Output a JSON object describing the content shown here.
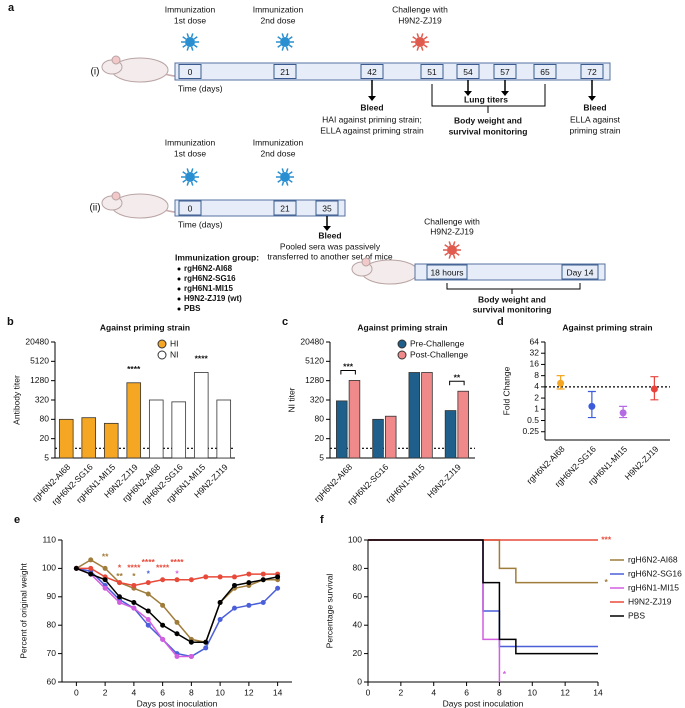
{
  "schematic": {
    "label": "a",
    "row_i": "(i)",
    "row_ii": "(ii)",
    "dose1": [
      "Immunization",
      "1st dose"
    ],
    "dose2": [
      "Immunization",
      "2nd dose"
    ],
    "challenge": [
      "Challenge with",
      "H9N2-ZJ19"
    ],
    "days_i": [
      "0",
      "21",
      "42",
      "51",
      "54",
      "57",
      "65",
      "72"
    ],
    "time_label": "Time (days)",
    "bleed": "Bleed",
    "bleed1_note": [
      "HAI against priming strain;",
      "ELLA against priming strain"
    ],
    "lung": "Lung titers",
    "monitor": [
      "Body weight and",
      "survival monitoring"
    ],
    "bleed2_note": [
      "ELLA against",
      "priming strain"
    ],
    "days_ii": [
      "0",
      "21",
      "35"
    ],
    "pooled": [
      "Pooled sera was passively",
      "transferred to another set of mice"
    ],
    "timeline_ii_right": [
      "18 hours",
      "Day 14"
    ],
    "group_title": "Immunization group:",
    "groups": [
      "rgH6N2-AI68",
      "rgH6N2-SG16",
      "rgH6N1-MI15",
      "H9N2-ZJ19 (wt)",
      "PBS"
    ]
  },
  "chart_data": [
    {
      "type": "bar",
      "panel": "b",
      "title": "Against priming strain",
      "ylabel": "Antibody  titer",
      "yscale": "log",
      "categories": [
        "rgH6N2-AI68",
        "rgH6N2-SG16",
        "rgH6N1-MI15",
        "H9N2-ZJ19",
        "rgH6N2-AI68",
        "rgH6N2-SG16",
        "rgH6N1-MI15",
        "H9N2-ZJ19"
      ],
      "series": [
        {
          "name": "HI",
          "color": "#f5a623",
          "values": [
            80,
            90,
            60,
            1100,
            null,
            null,
            null,
            null
          ]
        },
        {
          "name": "NI",
          "color": "#ffffff",
          "values": [
            null,
            null,
            null,
            null,
            320,
            280,
            2300,
            320
          ]
        }
      ],
      "ylim": [
        5,
        20480
      ],
      "yticks": [
        5,
        20,
        80,
        320,
        1280,
        5120,
        20480
      ],
      "threshold": 10,
      "legend": "upper right",
      "annotations": [
        {
          "text": "****",
          "category": 3
        },
        {
          "text": "****",
          "category": 6
        }
      ]
    },
    {
      "type": "bar",
      "panel": "c",
      "title": "Against priming strain",
      "ylabel": "NI titer",
      "yscale": "log",
      "categories": [
        "rgH6N2-AI68",
        "rgH6N2-SG16",
        "rgH6N1-MI15",
        "H9N2-ZJ19"
      ],
      "series": [
        {
          "name": "Pre-Challenge",
          "color": "#1f5f8b",
          "values": [
            300,
            80,
            2300,
            150
          ]
        },
        {
          "name": "Post-Challenge",
          "color": "#f08a8a",
          "values": [
            1300,
            100,
            2300,
            600
          ]
        }
      ],
      "ylim": [
        5,
        20480
      ],
      "yticks": [
        5,
        20,
        80,
        320,
        1280,
        5120,
        20480
      ],
      "threshold": 10,
      "legend": "upper right",
      "annotations": [
        {
          "text": "***",
          "category": 0
        },
        {
          "text": "**",
          "category": 3
        }
      ]
    },
    {
      "type": "scatter",
      "panel": "d",
      "title": "Against priming strain",
      "ylabel": "Fold Change",
      "yscale": "log",
      "categories": [
        "rgH6N2-AI68",
        "rgH6N2-SG16",
        "rgH6N1-MI15",
        "H9N2-ZJ19"
      ],
      "values": [
        5,
        1.2,
        0.8,
        3.5
      ],
      "error_low": [
        3.5,
        0.6,
        0.6,
        1.8
      ],
      "error_high": [
        8,
        3,
        1.2,
        7.5
      ],
      "colors": [
        "#f5a623",
        "#3b5bdb",
        "#b36ae2",
        "#e8423a"
      ],
      "ylim": [
        0.15,
        64
      ],
      "yticks": [
        0.25,
        0.5,
        1,
        2,
        4,
        8,
        16,
        32,
        64
      ],
      "threshold": 4
    },
    {
      "type": "line",
      "panel": "e",
      "ylabel": "Percent of original weight",
      "xlabel": "Days post inoculation",
      "x": [
        0,
        1,
        2,
        3,
        4,
        5,
        6,
        7,
        8,
        9,
        10,
        11,
        12,
        13,
        14
      ],
      "series": [
        {
          "name": "rgH6N2-AI68",
          "color": "#a07c3a",
          "values": [
            100,
            103,
            100,
            95,
            93,
            91,
            87,
            81,
            75,
            74,
            88,
            93,
            94,
            96,
            96
          ]
        },
        {
          "name": "rgH6N2-SG16",
          "color": "#4a5fd8",
          "values": [
            100,
            99,
            94,
            89,
            86,
            80,
            75,
            70,
            69,
            72,
            82,
            86,
            87,
            88,
            93
          ]
        },
        {
          "name": "rgH6N1-MI15",
          "color": "#d35fe0",
          "values": [
            100,
            98,
            93,
            88,
            86,
            82,
            75,
            69,
            69,
            null,
            null,
            null,
            null,
            null,
            null
          ]
        },
        {
          "name": "H9N2-ZJ19",
          "color": "#e84a3a",
          "values": [
            100,
            100,
            97,
            95,
            94,
            95,
            96,
            96,
            96,
            97,
            97,
            97,
            98,
            98,
            98
          ]
        },
        {
          "name": "PBS",
          "color": "#000000",
          "values": [
            100,
            98,
            96,
            90,
            88,
            85,
            80,
            77,
            74,
            74,
            88,
            94,
            95,
            96,
            97
          ]
        }
      ],
      "xlim": [
        -1,
        15
      ],
      "xticks": [
        0,
        2,
        4,
        6,
        8,
        10,
        12,
        14
      ],
      "ylim": [
        60,
        110
      ],
      "yticks": [
        60,
        70,
        80,
        90,
        100,
        110
      ],
      "annotations": [
        {
          "text": "**",
          "x": 2,
          "y": 104,
          "color": "#a07c3a"
        },
        {
          "text": "**",
          "x": 3,
          "y": 97,
          "color": "#a07c3a"
        },
        {
          "text": "*",
          "x": 4,
          "y": 97,
          "color": "#a07c3a"
        },
        {
          "text": "*",
          "x": 3,
          "y": 100,
          "color": "#e84a3a"
        },
        {
          "text": "****",
          "x": 4,
          "y": 100,
          "color": "#e84a3a"
        },
        {
          "text": "****",
          "x": 5,
          "y": 102,
          "color": "#e84a3a"
        },
        {
          "text": "*",
          "x": 5,
          "y": 98,
          "color": "#4a5fd8"
        },
        {
          "text": "****",
          "x": 6,
          "y": 100,
          "color": "#e84a3a"
        },
        {
          "text": "****",
          "x": 7,
          "y": 102,
          "color": "#e84a3a"
        },
        {
          "text": "*",
          "x": 7,
          "y": 98,
          "color": "#d35fe0"
        }
      ]
    },
    {
      "type": "line",
      "step": true,
      "panel": "f",
      "ylabel": "Percentage survival",
      "xlabel": "Days post inoculation",
      "series": [
        {
          "name": "rgH6N2-AI68",
          "color": "#a07c3a",
          "x": [
            0,
            8,
            9,
            14
          ],
          "values": [
            100,
            80,
            70,
            70
          ]
        },
        {
          "name": "rgH6N2-SG16",
          "color": "#4a5fd8",
          "x": [
            0,
            7,
            8,
            14
          ],
          "values": [
            100,
            50,
            25,
            25
          ]
        },
        {
          "name": "rgH6N1-MI15",
          "color": "#d35fe0",
          "x": [
            0,
            7,
            8
          ],
          "values": [
            100,
            30,
            0
          ]
        },
        {
          "name": "H9N2-ZJ19",
          "color": "#e84a3a",
          "x": [
            0,
            14
          ],
          "values": [
            100,
            100
          ]
        },
        {
          "name": "PBS",
          "color": "#000000",
          "x": [
            0,
            7,
            8,
            9,
            14
          ],
          "values": [
            100,
            70,
            30,
            20,
            20
          ]
        }
      ],
      "xlim": [
        0,
        14
      ],
      "xticks": [
        0,
        2,
        4,
        6,
        8,
        10,
        12,
        14
      ],
      "ylim": [
        0,
        100
      ],
      "yticks": [
        0,
        20,
        40,
        60,
        80,
        100
      ],
      "legend": "right",
      "annotations": [
        {
          "text": "***",
          "x": 14.5,
          "y": 100,
          "color": "#e84a3a"
        },
        {
          "text": "*",
          "x": 14.5,
          "y": 70,
          "color": "#a07c3a"
        },
        {
          "text": "*",
          "x": 8.3,
          "y": 5,
          "color": "#d35fe0"
        }
      ]
    }
  ]
}
